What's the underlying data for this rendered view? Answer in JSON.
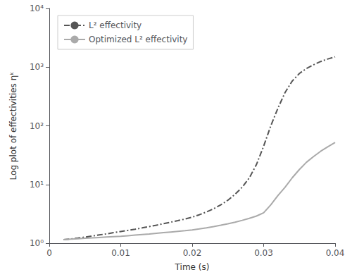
{
  "chart_data": {
    "type": "line",
    "xlabel": "Time (s)",
    "ylabel": "Log plot of effectivities ηᵏ",
    "x": [
      0.002,
      0.003,
      0.004,
      0.005,
      0.006,
      0.007,
      0.008,
      0.009,
      0.01,
      0.011,
      0.012,
      0.013,
      0.014,
      0.015,
      0.016,
      0.017,
      0.018,
      0.019,
      0.02,
      0.021,
      0.022,
      0.023,
      0.024,
      0.025,
      0.026,
      0.027,
      0.028,
      0.029,
      0.03,
      0.031,
      0.032,
      0.033,
      0.034,
      0.035,
      0.036,
      0.037,
      0.038,
      0.039,
      0.04
    ],
    "series": [
      {
        "name": "L² effectivity",
        "color": "#555555",
        "line_style": "dashdot",
        "values": [
          1.15,
          1.18,
          1.22,
          1.27,
          1.32,
          1.38,
          1.44,
          1.51,
          1.58,
          1.65,
          1.73,
          1.82,
          1.92,
          2.03,
          2.15,
          2.28,
          2.42,
          2.58,
          2.78,
          3.05,
          3.4,
          3.85,
          4.5,
          5.4,
          6.8,
          9.0,
          13.0,
          22.0,
          45.0,
          100.0,
          200.0,
          370.0,
          580.0,
          780.0,
          950.0,
          1100.0,
          1250.0,
          1380.0,
          1500.0
        ]
      },
      {
        "name": "Optimized L² effectivity",
        "color": "#aaaaaa",
        "line_style": "solid",
        "values": [
          1.15,
          1.17,
          1.19,
          1.21,
          1.23,
          1.25,
          1.27,
          1.29,
          1.31,
          1.34,
          1.37,
          1.4,
          1.43,
          1.47,
          1.51,
          1.55,
          1.59,
          1.63,
          1.68,
          1.75,
          1.83,
          1.92,
          2.02,
          2.14,
          2.28,
          2.45,
          2.65,
          2.9,
          3.3,
          4.5,
          6.5,
          9.0,
          13.0,
          18.0,
          24.0,
          30.0,
          37.0,
          44.0,
          52.0
        ]
      }
    ],
    "xlim": [
      0,
      0.04
    ],
    "ylim": [
      1,
      10000
    ],
    "xticks": [
      0,
      0.01,
      0.02,
      0.03,
      0.04
    ],
    "yticks": [
      {
        "value": 1,
        "label": "10⁰"
      },
      {
        "value": 10,
        "label": "10¹"
      },
      {
        "value": 100,
        "label": "10²"
      },
      {
        "value": 1000,
        "label": "10³"
      },
      {
        "value": 10000,
        "label": "10⁴"
      }
    ],
    "log": "y",
    "legend": "upper left",
    "grid": false
  }
}
